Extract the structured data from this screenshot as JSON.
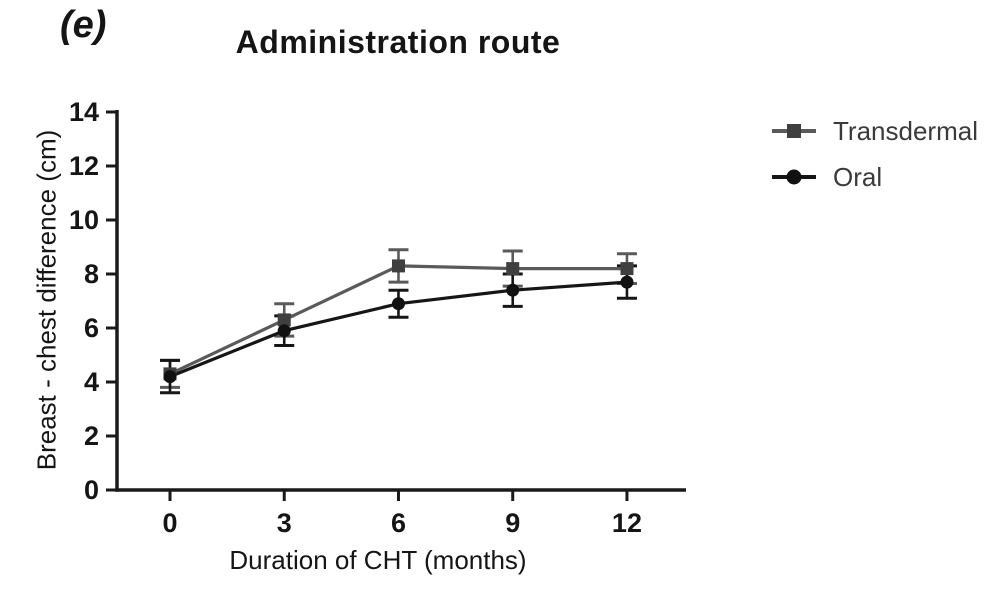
{
  "panel_label": "(e)",
  "legend": {
    "items": [
      {
        "label": "Transdermal",
        "marker": "square"
      },
      {
        "label": "Oral",
        "marker": "circle"
      }
    ]
  },
  "chart_data": {
    "type": "line",
    "title": "Administration route",
    "xlabel": "Duration of CHT (months)",
    "ylabel": "Breast - chest difference (cm)",
    "x": [
      0,
      3,
      6,
      9,
      12
    ],
    "x_tick_labels": [
      "0",
      "3",
      "6",
      "9",
      "12"
    ],
    "y_ticks": [
      0,
      2,
      4,
      6,
      8,
      10,
      12,
      14
    ],
    "ylim": [
      0,
      14
    ],
    "xlim": [
      -1.4,
      13.6
    ],
    "grid": false,
    "error_bars": true,
    "legend_position": "right",
    "axis_color": "#1a1a1a",
    "series": [
      {
        "name": "Transdermal",
        "marker": "square",
        "line_color": "#5a5a5a",
        "marker_color": "#3f3f3f",
        "values": [
          4.3,
          6.3,
          8.3,
          8.2,
          8.2
        ],
        "errors": [
          0.5,
          0.6,
          0.6,
          0.65,
          0.55
        ]
      },
      {
        "name": "Oral",
        "marker": "circle",
        "line_color": "#161616",
        "marker_color": "#111111",
        "values": [
          4.2,
          5.9,
          6.9,
          7.4,
          7.7
        ],
        "errors": [
          0.6,
          0.55,
          0.5,
          0.6,
          0.6
        ]
      }
    ]
  }
}
